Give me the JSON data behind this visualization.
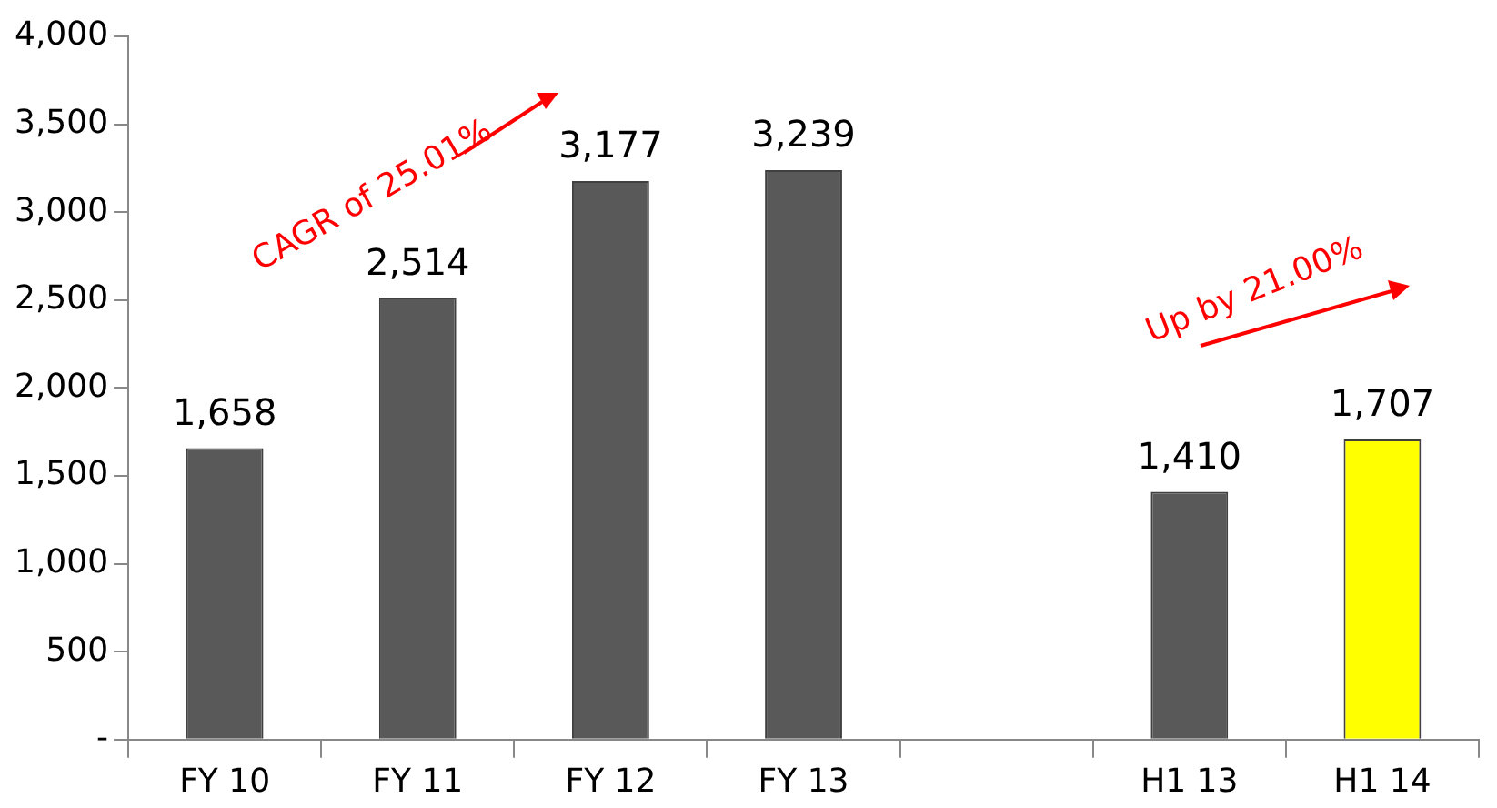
{
  "chart_data": {
    "type": "bar",
    "categories": [
      "FY 10",
      "FY 11",
      "FY 12",
      "FY 13",
      null,
      "H1 13",
      "H1 14"
    ],
    "values": [
      1658,
      2514,
      3177,
      3239,
      null,
      1410,
      1707
    ],
    "colors": [
      "#595959",
      "#595959",
      "#595959",
      "#595959",
      "#595959",
      "#595959",
      "#ffff00"
    ],
    "value_labels": [
      "1,658",
      "2,514",
      "3,177",
      "3,239",
      null,
      "1,410",
      "1,707"
    ],
    "ylim": [
      0,
      4000
    ],
    "yticks": [
      {
        "value": 0,
        "label": "-"
      },
      {
        "value": 500,
        "label": "500"
      },
      {
        "value": 1000,
        "label": "1,000"
      },
      {
        "value": 1500,
        "label": "1,500"
      },
      {
        "value": 2000,
        "label": "2,000"
      },
      {
        "value": 2500,
        "label": "2,500"
      },
      {
        "value": 3000,
        "label": "3,000"
      },
      {
        "value": 3500,
        "label": "3,500"
      },
      {
        "value": 4000,
        "label": "4,000"
      }
    ],
    "annotations": [
      "CAGR of 25.01%",
      "Up by 21.00%"
    ],
    "grid": false,
    "legend": false
  }
}
